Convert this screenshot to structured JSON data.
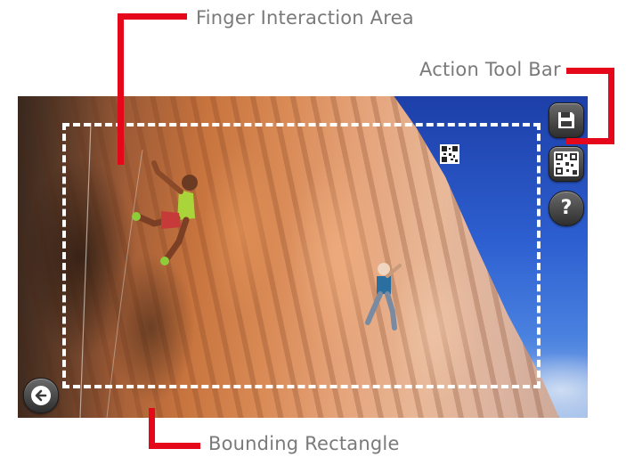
{
  "labels": {
    "finger_area": "Finger Interaction Area",
    "toolbar": "Action Tool Bar",
    "bounding": "Bounding Rectangle"
  },
  "toolbar": {
    "help_label": "?"
  },
  "icons": {
    "save": "floppy-disk-icon",
    "qr": "qr-code-icon",
    "help": "question-mark-icon",
    "back": "arrow-left-icon"
  },
  "colors": {
    "callout": "#e4081a",
    "label_text": "#7a7a7a",
    "bounding_rect": "#ffffff",
    "button_bg": "#3a3a3a"
  }
}
